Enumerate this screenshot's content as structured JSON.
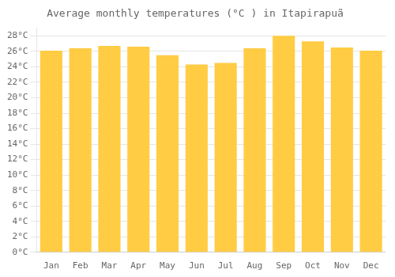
{
  "chart_data": {
    "type": "bar",
    "title": "Average monthly temperatures (°C ) in Itapirapuã",
    "categories": [
      "Jan",
      "Feb",
      "Mar",
      "Apr",
      "May",
      "Jun",
      "Jul",
      "Aug",
      "Sep",
      "Oct",
      "Nov",
      "Dec"
    ],
    "values": [
      26.1,
      26.4,
      26.7,
      26.6,
      25.5,
      24.3,
      24.5,
      26.4,
      28.0,
      27.3,
      26.5,
      26.1
    ],
    "color": "#FFCC44",
    "ylim": [
      0,
      29
    ],
    "yticks": [
      {
        "value": 0,
        "label": "0°C"
      },
      {
        "value": 2,
        "label": "2°C"
      },
      {
        "value": 4,
        "label": "4°C"
      },
      {
        "value": 6,
        "label": "6°C"
      },
      {
        "value": 8,
        "label": "8°C"
      },
      {
        "value": 10,
        "label": "10°C"
      },
      {
        "value": 12,
        "label": "12°C"
      },
      {
        "value": 14,
        "label": "14°C"
      },
      {
        "value": 16,
        "label": "16°C"
      },
      {
        "value": 18,
        "label": "18°C"
      },
      {
        "value": 20,
        "label": "20°C"
      },
      {
        "value": 22,
        "label": "22°C"
      },
      {
        "value": 24,
        "label": "24°C"
      },
      {
        "value": 26,
        "label": "26°C"
      },
      {
        "value": 28,
        "label": "28°C"
      }
    ],
    "grid": true
  }
}
